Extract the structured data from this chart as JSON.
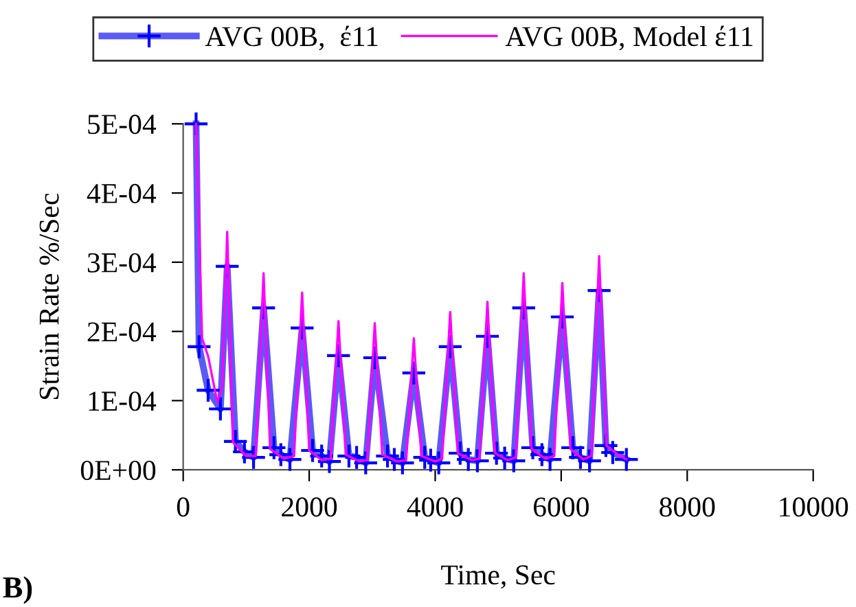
{
  "chart_data": {
    "type": "line",
    "xlabel": "Time, Sec",
    "ylabel": "Strain Rate %/Sec",
    "annotations": [
      "B)"
    ],
    "legend": "top",
    "grid": false,
    "xlim": [
      0,
      10000
    ],
    "xticks": [
      0,
      2000,
      4000,
      6000,
      8000,
      10000
    ],
    "ylim": [
      0,
      0.0005
    ],
    "yticks": [
      {
        "value": 0,
        "label": "0E+00"
      },
      {
        "value": 0.0001,
        "label": "1E-04"
      },
      {
        "value": 0.0002,
        "label": "2E-04"
      },
      {
        "value": 0.0003,
        "label": "3E-04"
      },
      {
        "value": 0.0004,
        "label": "4E-04"
      },
      {
        "value": 0.0005,
        "label": "5E-04"
      }
    ],
    "series": [
      {
        "name": "AVG 00B,  έ11",
        "color": "#5a5af5",
        "marker": "cross",
        "x": [
          205,
          252,
          396,
          591,
          699,
          829,
          973,
          1117,
          1276,
          1441,
          1550,
          1694,
          1888,
          2054,
          2198,
          2321,
          2465,
          2631,
          2753,
          2897,
          3041,
          3243,
          3351,
          3481,
          3661,
          3834,
          3928,
          4057,
          4238,
          4396,
          4526,
          4670,
          4829,
          4973,
          5103,
          5247,
          5405,
          5549,
          5694,
          5823,
          6018,
          6184,
          6306,
          6450,
          6602,
          6710,
          6818,
          7035
        ],
        "values": [
          0.0005,
          0.000178,
          0.000115,
          8.8e-05,
          0.000294,
          4.1e-05,
          2.6e-05,
          1.8e-05,
          0.000234,
          3.2e-05,
          2.2e-05,
          1.5e-05,
          0.000205,
          2.8e-05,
          2e-05,
          1.2e-05,
          0.000165,
          2e-05,
          1.8e-05,
          1e-05,
          0.000162,
          2e-05,
          1.5e-05,
          1e-05,
          0.00014,
          1.8e-05,
          1.4e-05,
          1e-05,
          0.000178,
          2.4e-05,
          1.5e-05,
          1.3e-05,
          0.000193,
          2.4e-05,
          1.7e-05,
          1.3e-05,
          0.000234,
          3.2e-05,
          2.2e-05,
          1.5e-05,
          0.000221,
          3.2e-05,
          1.8e-05,
          1.3e-05,
          0.000259,
          3.5e-05,
          2.5e-05,
          1.5e-05
        ]
      },
      {
        "name": "AVG 00B, Model έ11",
        "color": "#ff00ff",
        "marker": "none",
        "x": [
          205,
          300,
          396,
          541,
          620,
          699,
          790,
          1000,
          1150,
          1276,
          1380,
          1600,
          1760,
          1888,
          2000,
          2200,
          2340,
          2465,
          2580,
          2800,
          2920,
          3041,
          3160,
          3400,
          3540,
          3661,
          3780,
          4000,
          4110,
          4238,
          4360,
          4580,
          4700,
          4829,
          4950,
          5150,
          5280,
          5405,
          5530,
          5750,
          5890,
          6018,
          6150,
          6350,
          6480,
          6602,
          6720,
          6900,
          7035
        ],
        "values": [
          0.0005,
          0.00019,
          0.000164,
          9.8e-05,
          0.00012,
          0.000344,
          4e-05,
          2e-05,
          2e-05,
          0.000284,
          3e-05,
          1.6e-05,
          2e-05,
          0.000256,
          2.8e-05,
          1.4e-05,
          1.6e-05,
          0.000215,
          2.2e-05,
          1.2e-05,
          1.4e-05,
          0.000212,
          2.2e-05,
          1.2e-05,
          1.4e-05,
          0.00019,
          2e-05,
          1.2e-05,
          1.6e-05,
          0.000228,
          2.4e-05,
          1.4e-05,
          1.6e-05,
          0.000243,
          2.4e-05,
          1.4e-05,
          1.8e-05,
          0.000284,
          3e-05,
          1.6e-05,
          2e-05,
          0.00027,
          3e-05,
          1.5e-05,
          2e-05,
          0.000309,
          3.5e-05,
          2.2e-05,
          1.5e-05
        ]
      }
    ]
  }
}
